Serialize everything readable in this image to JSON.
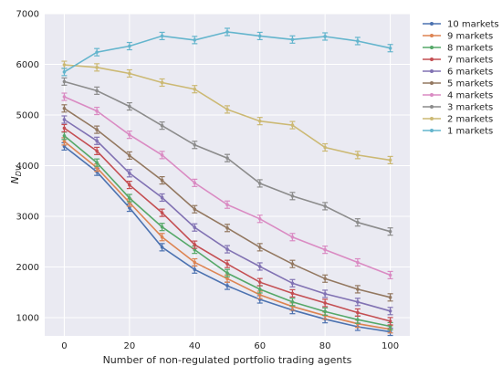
{
  "chart_data": {
    "type": "line",
    "xlabel": "Number of non-regulated portfolio trading agents",
    "ylabel_main": "N",
    "ylabel_sub": "DV",
    "x": [
      0,
      10,
      20,
      30,
      40,
      50,
      60,
      70,
      80,
      90,
      100
    ],
    "xlim": [
      -6,
      106
    ],
    "ylim": [
      640,
      7000
    ],
    "xticks": [
      0,
      20,
      40,
      60,
      80,
      100
    ],
    "yticks": [
      1000,
      2000,
      3000,
      4000,
      5000,
      6000,
      7000
    ],
    "grid": true,
    "background": "#eaeaf2",
    "legend_position": "right",
    "series": [
      {
        "name": "10 markets",
        "color": "#4c72b0",
        "values": [
          4380,
          3880,
          3170,
          2390,
          1950,
          1630,
          1360,
          1150,
          970,
          820,
          720
        ]
      },
      {
        "name": "9 markets",
        "color": "#dd8452",
        "values": [
          4480,
          3960,
          3270,
          2590,
          2090,
          1770,
          1450,
          1220,
          1040,
          880,
          770
        ]
      },
      {
        "name": "8 markets",
        "color": "#55a868",
        "values": [
          4590,
          4060,
          3360,
          2790,
          2340,
          1880,
          1560,
          1310,
          1120,
          960,
          830
        ]
      },
      {
        "name": "7 markets",
        "color": "#c44e52",
        "values": [
          4740,
          4290,
          3620,
          3070,
          2440,
          2060,
          1700,
          1480,
          1290,
          1100,
          930
        ]
      },
      {
        "name": "6 markets",
        "color": "#8172b3",
        "values": [
          4910,
          4490,
          3850,
          3370,
          2780,
          2350,
          2010,
          1680,
          1470,
          1310,
          1130
        ]
      },
      {
        "name": "5 markets",
        "color": "#937860",
        "values": [
          5130,
          4710,
          4200,
          3710,
          3140,
          2770,
          2390,
          2060,
          1770,
          1560,
          1400
        ]
      },
      {
        "name": "4 markets",
        "color": "#da8bc3",
        "values": [
          5360,
          5080,
          4610,
          4210,
          3660,
          3230,
          2950,
          2590,
          2340,
          2090,
          1840
        ]
      },
      {
        "name": "3 markets",
        "color": "#8c8c8c",
        "values": [
          5660,
          5480,
          5170,
          4790,
          4410,
          4150,
          3650,
          3400,
          3200,
          2880,
          2700
        ]
      },
      {
        "name": "2 markets",
        "color": "#ccb974",
        "values": [
          5990,
          5940,
          5820,
          5640,
          5510,
          5110,
          4880,
          4800,
          4360,
          4210,
          4110
        ]
      },
      {
        "name": "1 markets",
        "color": "#64b5cd",
        "values": [
          5850,
          6240,
          6360,
          6560,
          6480,
          6640,
          6560,
          6490,
          6550,
          6460,
          6320
        ]
      }
    ]
  }
}
